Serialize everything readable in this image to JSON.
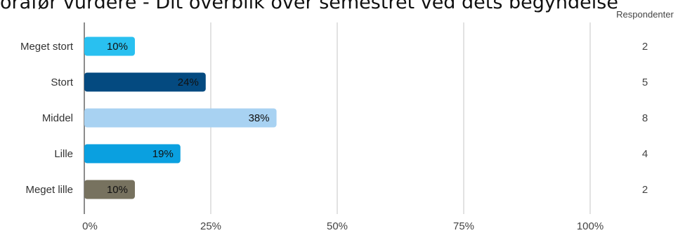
{
  "title": "orafør vurdere - Dit overblik over semestret ved dets begyndelse",
  "respondents_header": "Respondenter",
  "chart_data": {
    "type": "bar",
    "orientation": "horizontal",
    "categories": [
      "Meget stort",
      "Stort",
      "Middel",
      "Lille",
      "Meget lille"
    ],
    "values": [
      10,
      24,
      38,
      19,
      10
    ],
    "value_labels": [
      "10%",
      "24%",
      "38%",
      "19%",
      "10%"
    ],
    "respondents": [
      2,
      5,
      8,
      4,
      2
    ],
    "colors": [
      "#29c0f0",
      "#044a80",
      "#a8d2f2",
      "#0aa0e0",
      "#77725f"
    ],
    "label_colors": [
      "#111111",
      "#111111",
      "#111111",
      "#111111",
      "#111111"
    ],
    "xlim": [
      0,
      100
    ],
    "xticks": [
      0,
      25,
      50,
      75,
      100
    ],
    "xtick_labels": [
      "0%",
      "25%",
      "50%",
      "75%",
      "100%"
    ],
    "grid": true
  }
}
